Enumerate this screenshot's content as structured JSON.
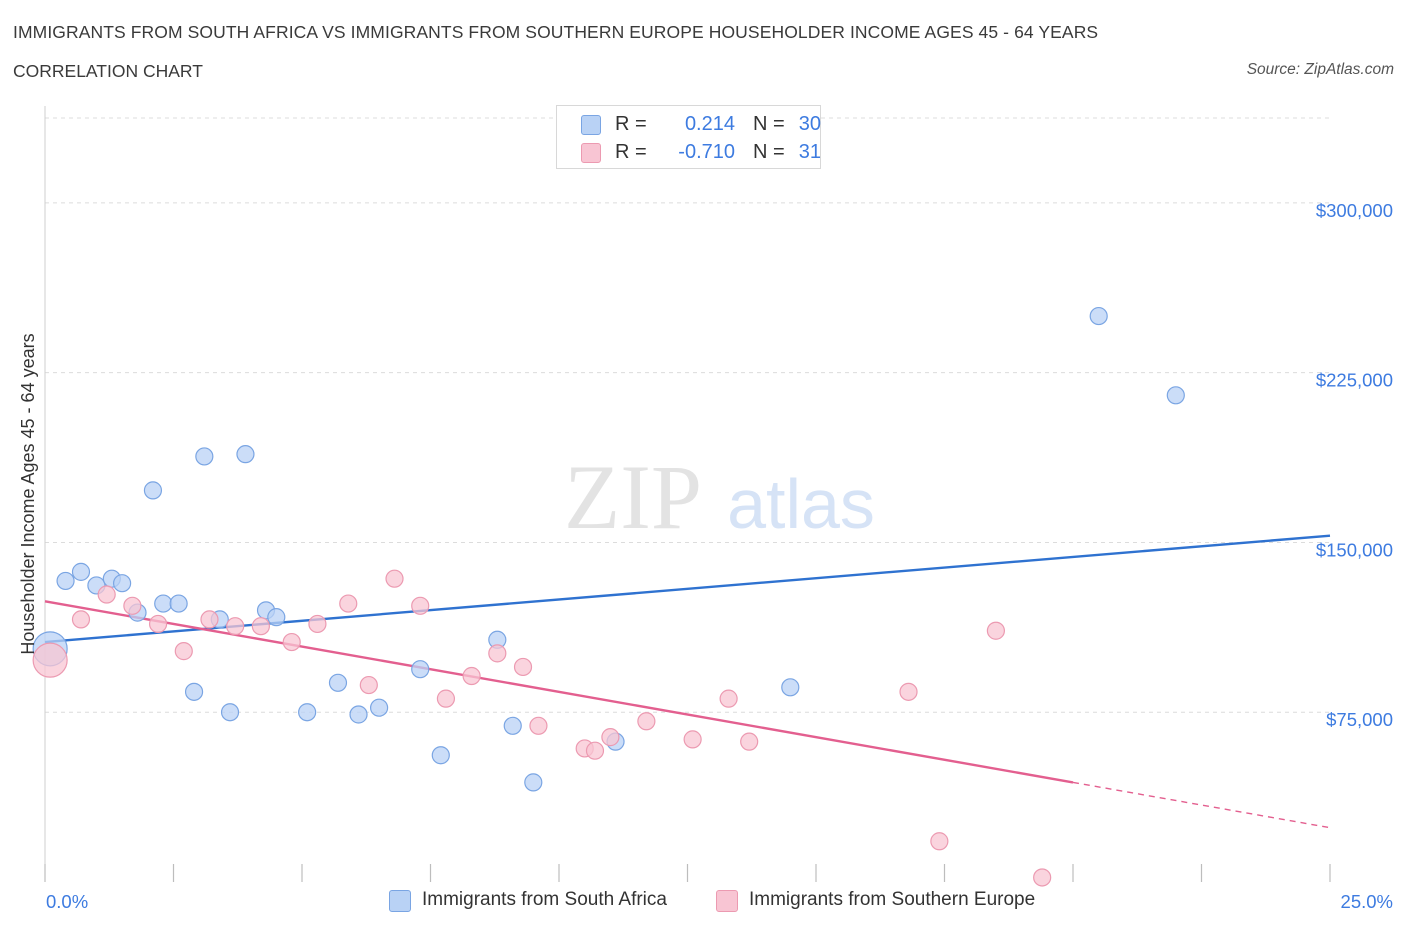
{
  "header": {
    "title": "IMMIGRANTS FROM SOUTH AFRICA VS IMMIGRANTS FROM SOUTHERN EUROPE HOUSEHOLDER INCOME AGES 45 - 64 YEARS",
    "subtitle": "CORRELATION CHART",
    "source": "Source: ZipAtlas.com"
  },
  "legend": {
    "rows": [
      {
        "r_label": "R =",
        "r_value": "0.214",
        "n_label": "N =",
        "n_value": "30"
      },
      {
        "r_label": "R =",
        "r_value": "-0.710",
        "n_label": "N =",
        "n_value": "31"
      }
    ]
  },
  "bottom_legend": {
    "items": [
      {
        "label": "Immigrants from South Africa"
      },
      {
        "label": "Immigrants from Southern Europe"
      }
    ]
  },
  "watermark": {
    "zip": "ZIP",
    "atlas": "atlas"
  },
  "colors": {
    "blue_fill": "#b9d2f5",
    "blue_stroke": "#7aa5e3",
    "blue_line": "#2f72d0",
    "pink_fill": "#f8c5d3",
    "pink_stroke": "#ec9ab1",
    "pink_line": "#e35f8f",
    "tick_label": "#3d7be0",
    "grid": "#dcdcdc"
  },
  "chart_data": {
    "type": "scatter",
    "ylabel": "Householder Income Ages 45 - 64 years",
    "xlim": [
      0,
      25
    ],
    "ylim": [
      0,
      300000
    ],
    "x_tick_labels": [
      "0.0%",
      "25.0%"
    ],
    "y_ticks": [
      75000,
      150000,
      225000,
      300000
    ],
    "y_tick_labels": [
      "$75,000",
      "$150,000",
      "$225,000",
      "$300,000"
    ],
    "grid": true,
    "series": [
      {
        "name": "Immigrants from South Africa",
        "color": "blue",
        "trend": {
          "x": [
            0,
            25
          ],
          "y": [
            106000,
            153000
          ]
        },
        "points": [
          {
            "x": 0.1,
            "y": 103000,
            "big": true
          },
          {
            "x": 0.4,
            "y": 133000
          },
          {
            "x": 0.7,
            "y": 137000
          },
          {
            "x": 1.0,
            "y": 131000
          },
          {
            "x": 1.3,
            "y": 134000
          },
          {
            "x": 1.5,
            "y": 132000
          },
          {
            "x": 1.8,
            "y": 119000
          },
          {
            "x": 2.1,
            "y": 173000
          },
          {
            "x": 2.3,
            "y": 123000
          },
          {
            "x": 2.6,
            "y": 123000
          },
          {
            "x": 2.9,
            "y": 84000
          },
          {
            "x": 3.1,
            "y": 188000
          },
          {
            "x": 3.4,
            "y": 116000
          },
          {
            "x": 3.6,
            "y": 75000
          },
          {
            "x": 3.9,
            "y": 189000
          },
          {
            "x": 4.3,
            "y": 120000
          },
          {
            "x": 4.5,
            "y": 117000
          },
          {
            "x": 5.1,
            "y": 75000
          },
          {
            "x": 5.7,
            "y": 88000
          },
          {
            "x": 6.1,
            "y": 74000
          },
          {
            "x": 6.5,
            "y": 77000
          },
          {
            "x": 7.3,
            "y": 94000
          },
          {
            "x": 7.7,
            "y": 56000
          },
          {
            "x": 8.8,
            "y": 107000
          },
          {
            "x": 9.1,
            "y": 69000
          },
          {
            "x": 9.5,
            "y": 44000
          },
          {
            "x": 11.1,
            "y": 62000
          },
          {
            "x": 14.5,
            "y": 86000
          },
          {
            "x": 20.5,
            "y": 250000
          },
          {
            "x": 22.0,
            "y": 215000
          }
        ]
      },
      {
        "name": "Immigrants from Southern Europe",
        "color": "pink",
        "trend": {
          "x": [
            0,
            20
          ],
          "y": [
            124000,
            44000
          ],
          "dashed_to": {
            "x": 25,
            "y": 24000
          }
        },
        "points": [
          {
            "x": 0.1,
            "y": 98000,
            "big": true
          },
          {
            "x": 0.7,
            "y": 116000
          },
          {
            "x": 1.2,
            "y": 127000
          },
          {
            "x": 1.7,
            "y": 122000
          },
          {
            "x": 2.2,
            "y": 114000
          },
          {
            "x": 2.7,
            "y": 102000
          },
          {
            "x": 3.2,
            "y": 116000
          },
          {
            "x": 3.7,
            "y": 113000
          },
          {
            "x": 4.2,
            "y": 113000
          },
          {
            "x": 4.8,
            "y": 106000
          },
          {
            "x": 5.3,
            "y": 114000
          },
          {
            "x": 5.9,
            "y": 123000
          },
          {
            "x": 6.3,
            "y": 87000
          },
          {
            "x": 6.8,
            "y": 134000
          },
          {
            "x": 7.3,
            "y": 122000
          },
          {
            "x": 7.8,
            "y": 81000
          },
          {
            "x": 8.3,
            "y": 91000
          },
          {
            "x": 8.8,
            "y": 101000
          },
          {
            "x": 9.3,
            "y": 95000
          },
          {
            "x": 9.6,
            "y": 69000
          },
          {
            "x": 10.5,
            "y": 59000
          },
          {
            "x": 10.7,
            "y": 58000
          },
          {
            "x": 11.0,
            "y": 64000
          },
          {
            "x": 11.7,
            "y": 71000
          },
          {
            "x": 12.6,
            "y": 63000
          },
          {
            "x": 13.3,
            "y": 81000
          },
          {
            "x": 13.7,
            "y": 62000
          },
          {
            "x": 16.8,
            "y": 84000
          },
          {
            "x": 17.4,
            "y": 18000
          },
          {
            "x": 18.5,
            "y": 111000
          },
          {
            "x": 19.4,
            "y": 2000
          }
        ]
      }
    ]
  }
}
